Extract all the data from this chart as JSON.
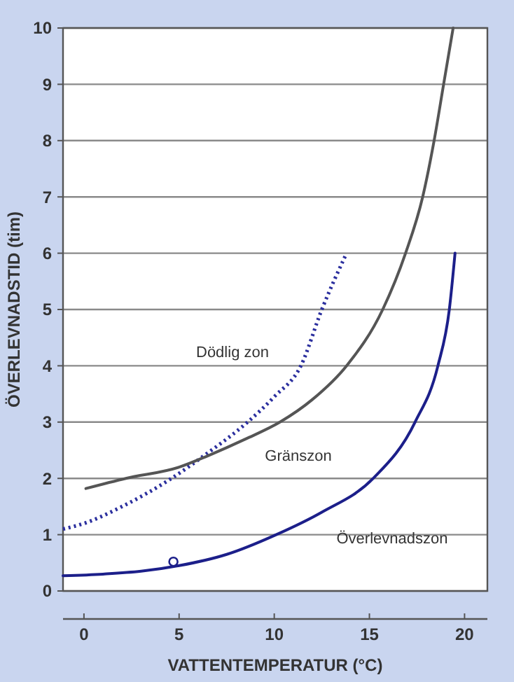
{
  "chart_data": {
    "type": "line",
    "xlabel": "VATTENTEMPERATUR (°C)",
    "ylabel": "ÖVERLEVNADSTID (tim)",
    "xlim": [
      -1.1,
      21.2
    ],
    "xticks": [
      0,
      5,
      10,
      15,
      20
    ],
    "ylim": [
      0,
      10
    ],
    "yticks": [
      0,
      1,
      2,
      3,
      4,
      5,
      6,
      7,
      8,
      9,
      10
    ],
    "grid": "y",
    "series": [
      {
        "color": "#2b2f9e",
        "line_style": "dotted",
        "marker": "none",
        "x": [
          -1.1,
          0,
          2,
          4.6,
          6.5,
          8.6,
          10,
          11.4,
          12.5,
          13.8
        ],
        "values": [
          1.1,
          1.2,
          1.5,
          2,
          2.45,
          3,
          3.45,
          4,
          5,
          6
        ]
      },
      {
        "color": "#555555",
        "line_style": "solid",
        "marker": "none",
        "x": [
          0.1,
          2.2,
          5,
          6.5,
          8.5,
          10.3,
          12,
          13.8,
          15.7,
          16.9,
          17.8,
          18.4,
          18.9,
          19.4
        ],
        "values": [
          1.82,
          2,
          2.2,
          2.4,
          2.7,
          3,
          3.4,
          4,
          5,
          6,
          7,
          8,
          9,
          10
        ]
      },
      {
        "color": "#1c1f8a",
        "line_style": "solid",
        "marker": "none",
        "x": [
          -1.1,
          1,
          3,
          5,
          7.5,
          10.1,
          12.5,
          15.2,
          17.4,
          18.6,
          19.2,
          19.5
        ],
        "values": [
          0.27,
          0.3,
          0.35,
          0.45,
          0.65,
          1,
          1.4,
          2,
          3,
          4,
          5,
          6
        ]
      },
      {
        "type": "scatter",
        "color": "#1c1f8a",
        "marker": "circle",
        "x": [
          4.7
        ],
        "values": [
          0.52
        ]
      }
    ],
    "annotations": [
      "Dödlig zon",
      "Gränszon",
      "Överlevnadszon"
    ]
  }
}
